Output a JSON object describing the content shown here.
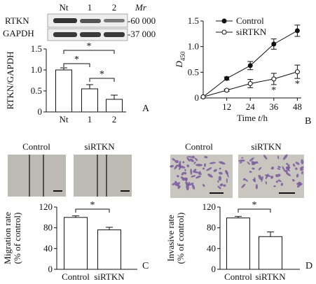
{
  "panels": {
    "A": {
      "letter": "A",
      "blot": {
        "lanes": [
          "Nt",
          "1",
          "2"
        ],
        "mr_label": "Mr",
        "rows": [
          {
            "label": "RTKN",
            "marker": "-60 000"
          },
          {
            "label": "GAPDH",
            "marker": "-37 000"
          }
        ]
      }
    },
    "B": {
      "letter": "B",
      "stars": [
        "*",
        "*"
      ]
    },
    "C": {
      "letter": "C",
      "micrograph_labels": [
        "Control",
        "siRTKN"
      ]
    },
    "D": {
      "letter": "D",
      "micrograph_labels": [
        "Control",
        "siRTKN"
      ]
    }
  },
  "colors": {
    "ink": "#111111",
    "bar_fill": "#ffffff",
    "micro_bg": "#bdbab3",
    "stain": "#7a5a9e"
  },
  "chart_data": [
    {
      "type": "bar",
      "panel": "A",
      "categories": [
        "Nt",
        "1",
        "2"
      ],
      "values": [
        1.0,
        0.55,
        0.3
      ],
      "errors": [
        0.05,
        0.1,
        0.1
      ],
      "ylabel": "RTKN/GAPDH",
      "yticks": [
        "0",
        "0.5",
        "1.0",
        "1.5"
      ],
      "ylim": [
        0,
        1.5
      ],
      "significance": [
        {
          "from": 0,
          "to": 1,
          "label": "*"
        },
        {
          "from": 0,
          "to": 2,
          "label": "*"
        },
        {
          "from": 1,
          "to": 2,
          "label": "*"
        }
      ]
    },
    {
      "type": "line",
      "panel": "B",
      "x": [
        0,
        12,
        24,
        36,
        48
      ],
      "xticks": [
        "12",
        "24",
        "36",
        "48"
      ],
      "xlim": [
        0,
        50
      ],
      "xlabel": "Time t/h",
      "ylabel": "D450",
      "yticks": [
        "0",
        "0.5",
        "1.0",
        "1.5"
      ],
      "ylim": [
        0,
        1.5
      ],
      "series": [
        {
          "name": "Control",
          "marker": "filled",
          "values": [
            0.02,
            0.38,
            0.63,
            1.05,
            1.31
          ],
          "errors": [
            0,
            0.03,
            0.08,
            0.1,
            0.11
          ]
        },
        {
          "name": "siRTKN",
          "marker": "open",
          "values": [
            0.02,
            0.15,
            0.28,
            0.37,
            0.51
          ],
          "errors": [
            0,
            0.02,
            0.08,
            0.11,
            0.13
          ]
        }
      ]
    },
    {
      "type": "bar",
      "panel": "C",
      "categories": [
        "Control",
        "siRTKN"
      ],
      "values": [
        100,
        76
      ],
      "errors": [
        3,
        5
      ],
      "ylabel": "Migration rate (% of control)",
      "ylabel_lines": [
        "Migration rate",
        "(% of control)"
      ],
      "yticks": [
        "0",
        "40",
        "80",
        "120"
      ],
      "ylim": [
        0,
        120
      ],
      "significance": [
        {
          "from": 0,
          "to": 1,
          "label": "*"
        }
      ]
    },
    {
      "type": "bar",
      "panel": "D",
      "categories": [
        "Control",
        "siRTKN"
      ],
      "values": [
        99,
        63
      ],
      "errors": [
        3,
        9
      ],
      "ylabel": "Invasive rate (% of control)",
      "ylabel_lines": [
        "Invasive rate",
        "(% of control)"
      ],
      "yticks": [
        "0",
        "40",
        "80",
        "120"
      ],
      "ylim": [
        0,
        120
      ],
      "significance": [
        {
          "from": 0,
          "to": 1,
          "label": "*"
        }
      ]
    }
  ]
}
